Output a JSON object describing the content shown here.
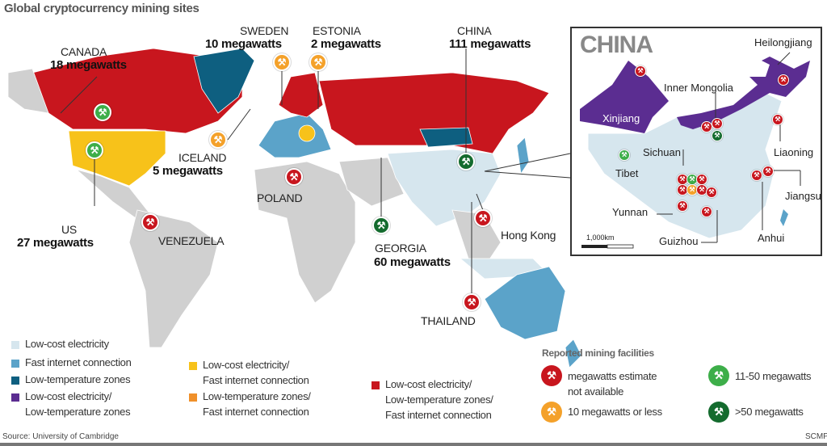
{
  "title": "Global cryptocurrency mining sites",
  "colors": {
    "low_cost_electricity": "#d6e6ee",
    "fast_internet": "#5ba3c9",
    "low_temperature": "#0e5f80",
    "low_cost_low_temp": "#5b2d91",
    "low_cost_fast_internet": "#f7c21a",
    "low_temp_fast_internet": "#f0902a",
    "all_three": "#c8161e",
    "marker_na": "#c8161e",
    "marker_10_or_less": "#f4a12a",
    "marker_11_50": "#3dae49",
    "marker_over_50": "#146b2e"
  },
  "sites": {
    "canada": {
      "name": "CANADA",
      "mw": "18 megawatts",
      "marker": "11-50"
    },
    "us": {
      "name": "US",
      "mw": "27 megawatts",
      "marker": "11-50"
    },
    "iceland": {
      "name": "ICELAND",
      "mw": "5 megawatts",
      "marker": "10 or less"
    },
    "sweden": {
      "name": "SWEDEN",
      "mw": "10 megawatts",
      "marker": "10 or less"
    },
    "estonia": {
      "name": "ESTONIA",
      "mw": "2 megawatts",
      "marker": "10 or less"
    },
    "china": {
      "name": "CHINA",
      "mw": "111 megawatts",
      "marker": ">50"
    },
    "poland": {
      "name": "POLAND",
      "marker": "n/a"
    },
    "venezuela": {
      "name": "VENEZUELA",
      "marker": "n/a"
    },
    "georgia": {
      "name": "GEORGIA",
      "mw": "60 megawatts",
      "marker": ">50"
    },
    "hongkong": {
      "name": "Hong Kong",
      "marker": "n/a"
    },
    "thailand": {
      "name": "THAILAND",
      "marker": "n/a"
    }
  },
  "inset": {
    "title": "CHINA",
    "provinces": [
      "Heilongjiang",
      "Inner Mongolia",
      "Xinjiang",
      "Liaoning",
      "Sichuan",
      "Tibet",
      "Jiangsu",
      "Yunnan",
      "Guizhou",
      "Anhui"
    ],
    "scale": "1,000km"
  },
  "legend": {
    "categories": [
      "Low-cost electricity",
      "Fast internet connection",
      "Low-temperature zones",
      "Low-cost electricity/\nLow-temperature zones",
      "Low-cost electricity/\nFast internet connection",
      "Low-temperature zones/\nFast internet connection",
      "Low-cost electricity/\nLow-temperature zones/\nFast internet connection"
    ],
    "facilities_title": "Reported mining facilities",
    "facilities": [
      "megawatts estimate not available",
      "10 megawatts or less",
      "11-50 megawatts",
      ">50 megawatts"
    ]
  },
  "source": "Source: University of Cambridge",
  "credit": "SCMP"
}
